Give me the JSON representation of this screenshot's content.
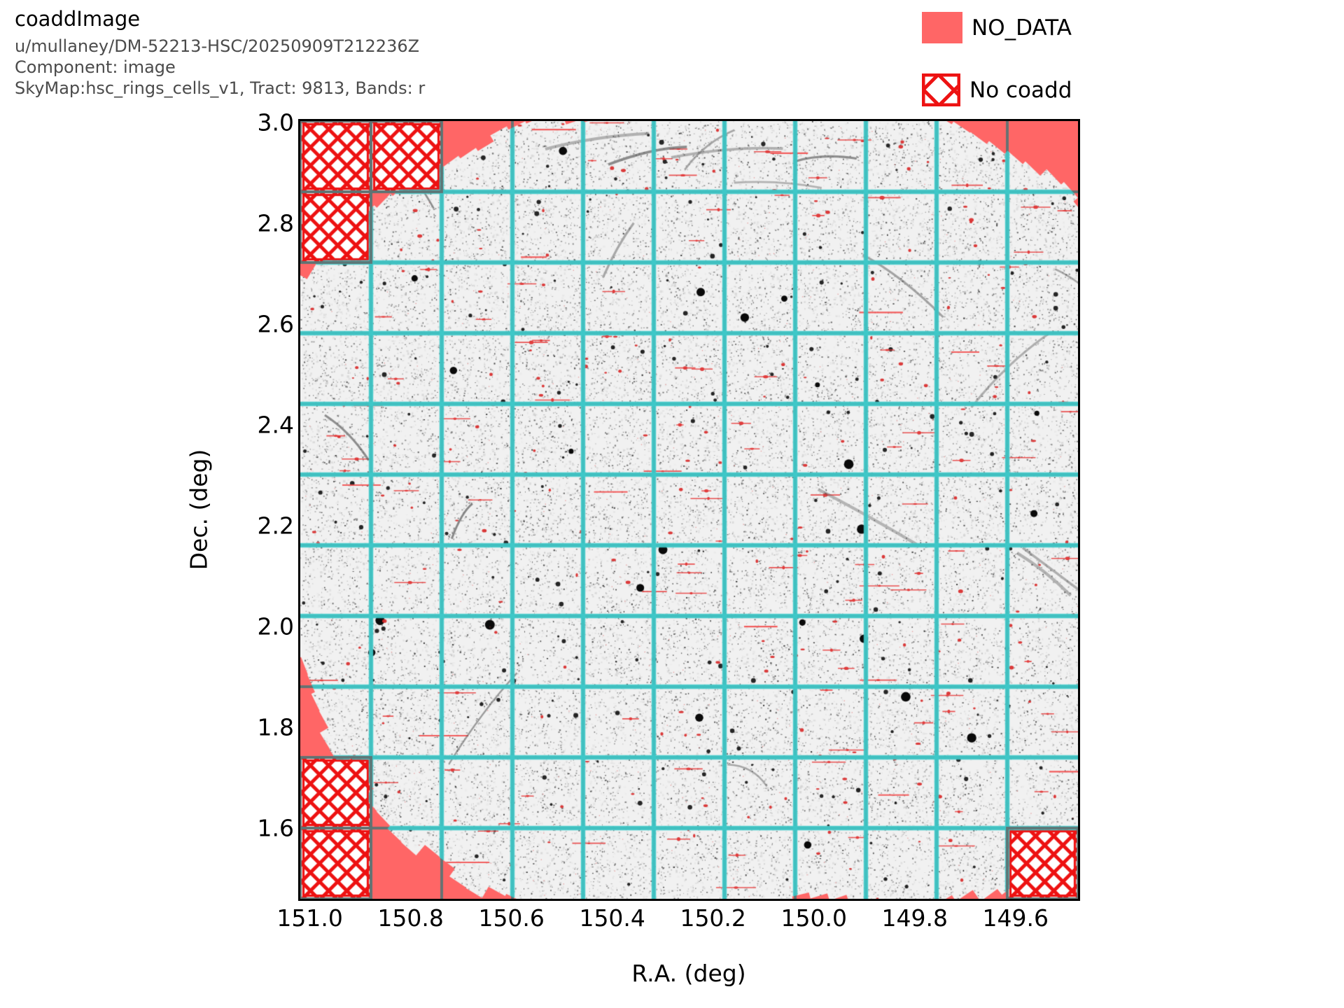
{
  "header": {
    "title": "coaddImage",
    "subtitle1": "u/mullaney/DM-52213-HSC/20250909T212236Z",
    "subtitle2": "Component: image",
    "subtitle3": "SkyMap:hsc_rings_cells_v1, Tract: 9813, Bands: r"
  },
  "legend": {
    "no_data_label": "NO_DATA",
    "no_coadd_label": "No coadd"
  },
  "axes": {
    "xlabel": "R.A. (deg)",
    "ylabel": "Dec. (deg)"
  },
  "chart_data": {
    "type": "heatmap",
    "title": "coaddImage",
    "xlabel": "R.A. (deg)",
    "ylabel": "Dec. (deg)",
    "x_ticks": [
      151.0,
      150.8,
      150.6,
      150.4,
      150.2,
      150.0,
      149.8,
      149.6
    ],
    "y_ticks": [
      3.0,
      2.8,
      2.6,
      2.4,
      2.2,
      2.0,
      1.8,
      1.6
    ],
    "xlim": [
      151.019,
      149.476
    ],
    "ylim": [
      1.46,
      3.003
    ],
    "x_axis_reversed": true,
    "grid": {
      "patch_cols": 11,
      "patch_rows": 11,
      "lines_shown": true
    },
    "legend_entries": [
      {
        "label": "NO_DATA",
        "style": "solid-fill",
        "color": "#FF6666"
      },
      {
        "label": "No coadd",
        "style": "red-crosshatch",
        "color": "#ED1212"
      }
    ],
    "no_coadd_patches_colrow": [
      [
        0,
        0
      ],
      [
        1,
        0
      ],
      [
        0,
        1
      ],
      [
        0,
        9
      ],
      [
        0,
        10
      ],
      [
        10,
        10
      ]
    ],
    "coverage": {
      "shape": "roughly circular coadd footprint clipped by the tract square",
      "center_radec_deg": [
        150.25,
        2.23
      ],
      "radius_deg": 0.89
    }
  },
  "colors": {
    "no_data": "#FF6666",
    "hatch_red": "#ED1212",
    "grid_line_over_data": "#3CC9C9",
    "grid_line_over_nodata": "#5F7373",
    "image_base": "#F1F1F1",
    "plot_border": "#000000",
    "subtitle_text": "#4b4b4b",
    "source_red_mark": "#E03030",
    "trail_gray": "#4f4f4f"
  }
}
